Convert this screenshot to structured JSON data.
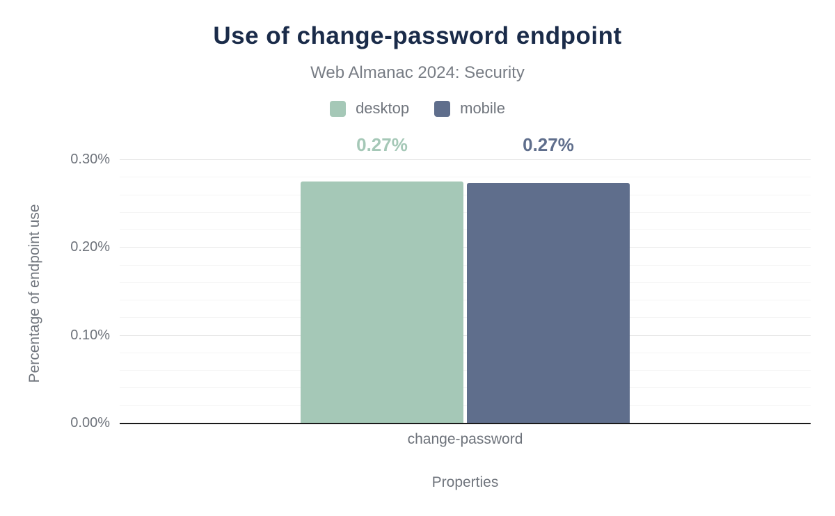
{
  "chart_data": {
    "type": "bar",
    "title": "Use of change-password endpoint",
    "subtitle": "Web Almanac 2024: Security",
    "xlabel": "Properties",
    "ylabel": "Percentage of endpoint use",
    "categories": [
      "change-password"
    ],
    "series": [
      {
        "name": "desktop",
        "values": [
          0.275
        ],
        "labels": [
          "0.27%"
        ],
        "color": "#a5c8b7"
      },
      {
        "name": "mobile",
        "values": [
          0.273
        ],
        "labels": [
          "0.27%"
        ],
        "color": "#5f6e8c"
      }
    ],
    "ylim": [
      0,
      0.3
    ],
    "yticks": [
      {
        "value": 0.3,
        "label": "0.30%"
      },
      {
        "value": 0.2,
        "label": "0.20%"
      },
      {
        "value": 0.1,
        "label": "0.10%"
      },
      {
        "value": 0.0,
        "label": "0.00%"
      }
    ],
    "minor_grid_step": 0.02,
    "major_grid_step": 0.1,
    "grid": true,
    "legend_position": "top",
    "style": {
      "title_color": "#1a2b49",
      "axis_text_color": "#70757d",
      "axis_line_color": "#1a1a1a"
    }
  }
}
